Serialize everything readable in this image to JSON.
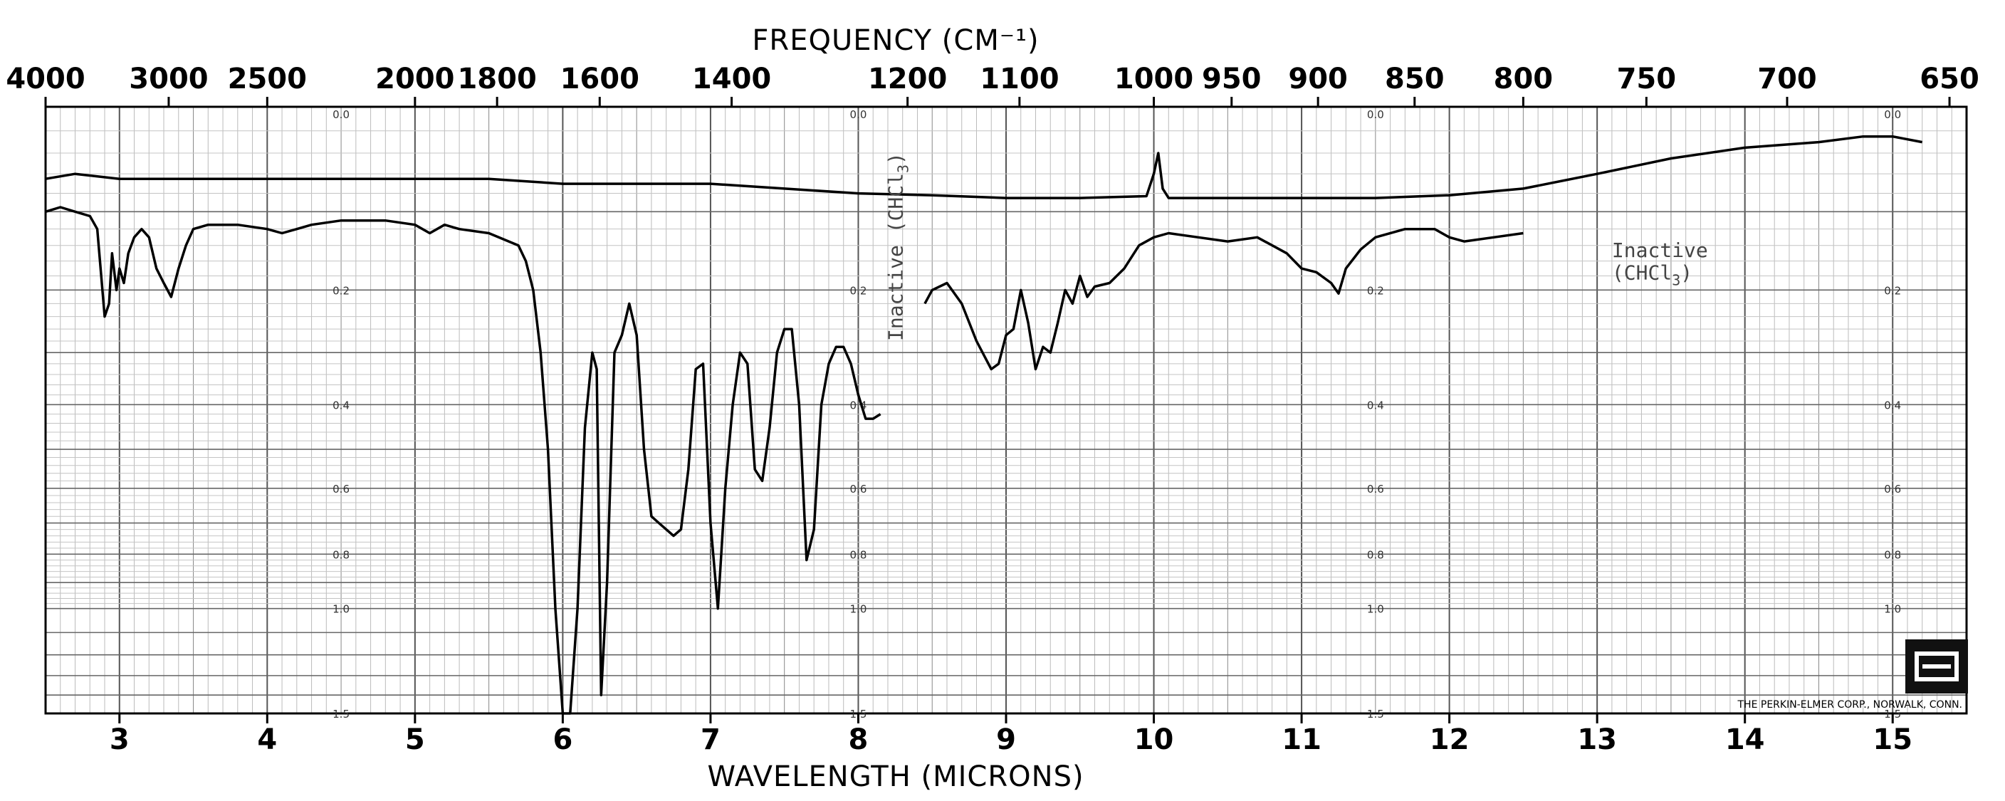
{
  "chart_data": {
    "type": "line",
    "title": "",
    "top_axis_title": "FREQUENCY (CM⁻¹)",
    "xlabel": "WAVELENGTH (MICRONS)",
    "ylabel": "",
    "xlim": [
      2.5,
      15.5
    ],
    "frequency_tick_labels": [
      "4000",
      "3000",
      "2500",
      "2000",
      "1800",
      "1600",
      "1400",
      "1200",
      "1100",
      "1000",
      "950",
      "900",
      "850",
      "800",
      "750",
      "700",
      "650"
    ],
    "frequency_tick_values": [
      4000,
      3000,
      2500,
      2000,
      1800,
      1600,
      1400,
      1200,
      1100,
      1000,
      950,
      900,
      850,
      800,
      750,
      700,
      650
    ],
    "wavelength_tick_labels": [
      "3",
      "4",
      "5",
      "6",
      "7",
      "8",
      "9",
      "10",
      "11",
      "12",
      "13",
      "14",
      "15"
    ],
    "wavelength_tick_values": [
      3,
      4,
      5,
      6,
      7,
      8,
      9,
      10,
      11,
      12,
      13,
      14,
      15
    ],
    "absorbance_tick_labels": [
      "0.0",
      "0.2",
      "0.4",
      "0.6",
      "0.8",
      "1.0",
      "1.5"
    ],
    "absorbance_tick_values": [
      0.0,
      0.2,
      0.4,
      0.6,
      0.8,
      1.0,
      1.5
    ],
    "absorbance_label_columns_micron": [
      4.5,
      8.0,
      11.5,
      15.0
    ],
    "grid": true,
    "annotations": [
      {
        "text": "Inactive (CHCl",
        "sub": "3",
        "close": ")",
        "x": 8.3,
        "y": 0.28,
        "rotation": -90
      },
      {
        "text": "Inactive",
        "x": 13.1,
        "y": 0.155
      },
      {
        "text": "(CHCl",
        "sub": "3",
        "close": ")",
        "x": 13.1,
        "y": 0.185
      }
    ],
    "credit": "THE PERKIN-ELMER CORP., NORWALK, CONN.",
    "series": [
      {
        "name": "",
        "x": [
          2.5,
          2.6,
          2.7,
          2.8,
          2.85,
          2.9,
          2.93,
          2.95,
          2.98,
          3.0,
          3.03,
          3.06,
          3.1,
          3.15,
          3.2,
          3.25,
          3.3,
          3.35,
          3.4,
          3.45,
          3.5,
          3.6,
          3.8,
          4.0,
          4.1,
          4.2,
          4.3,
          4.5,
          4.8,
          5.0,
          5.1,
          5.2,
          5.3,
          5.5,
          5.7,
          5.75,
          5.8,
          5.85,
          5.9,
          5.95,
          6.0,
          6.05,
          6.1,
          6.15,
          6.2,
          6.23,
          6.26,
          6.3,
          6.35,
          6.4,
          6.45,
          6.5,
          6.55,
          6.6,
          6.65,
          6.7,
          6.75,
          6.8,
          6.85,
          6.9,
          6.95,
          7.0,
          7.05,
          7.1,
          7.15,
          7.2,
          7.25,
          7.3,
          7.35,
          7.4,
          7.45,
          7.5,
          7.55,
          7.6,
          7.65,
          7.7,
          7.75,
          7.8,
          7.85,
          7.9,
          7.95,
          8.0,
          8.05,
          8.1,
          8.15
        ],
        "y": [
          0.1,
          0.095,
          0.1,
          0.105,
          0.12,
          0.24,
          0.22,
          0.15,
          0.2,
          0.17,
          0.19,
          0.15,
          0.13,
          0.12,
          0.13,
          0.17,
          0.19,
          0.21,
          0.17,
          0.14,
          0.12,
          0.115,
          0.115,
          0.12,
          0.125,
          0.12,
          0.115,
          0.11,
          0.11,
          0.115,
          0.125,
          0.115,
          0.12,
          0.125,
          0.14,
          0.16,
          0.2,
          0.3,
          0.5,
          1.0,
          1.5,
          1.5,
          1.0,
          0.45,
          0.3,
          0.33,
          1.4,
          0.9,
          0.3,
          0.27,
          0.22,
          0.27,
          0.5,
          0.68,
          0.7,
          0.72,
          0.74,
          0.72,
          0.55,
          0.33,
          0.32,
          0.7,
          1.0,
          0.6,
          0.4,
          0.3,
          0.32,
          0.55,
          0.58,
          0.45,
          0.3,
          0.26,
          0.26,
          0.4,
          0.82,
          0.72,
          0.4,
          0.32,
          0.29,
          0.29,
          0.32,
          0.38,
          0.43,
          0.43,
          0.42
        ]
      },
      {
        "name": "",
        "x": [
          8.45,
          8.5,
          8.6,
          8.7,
          8.8,
          8.9,
          8.95,
          9.0,
          9.05,
          9.1,
          9.15,
          9.2,
          9.25,
          9.3,
          9.35,
          9.4,
          9.45,
          9.5,
          9.55,
          9.6,
          9.7,
          9.8,
          9.9,
          10.0,
          10.1,
          10.3,
          10.5,
          10.7,
          10.9,
          11.0,
          11.1,
          11.2,
          11.25,
          11.3,
          11.4,
          11.5,
          11.7,
          11.9,
          12.0,
          12.1,
          12.3,
          12.5
        ],
        "y": [
          0.22,
          0.2,
          0.19,
          0.22,
          0.28,
          0.33,
          0.32,
          0.27,
          0.26,
          0.2,
          0.25,
          0.33,
          0.29,
          0.3,
          0.25,
          0.2,
          0.22,
          0.18,
          0.21,
          0.195,
          0.19,
          0.17,
          0.14,
          0.13,
          0.125,
          0.13,
          0.135,
          0.13,
          0.15,
          0.17,
          0.175,
          0.19,
          0.205,
          0.17,
          0.145,
          0.13,
          0.12,
          0.12,
          0.13,
          0.135,
          0.13,
          0.125
        ]
      },
      {
        "name": "",
        "x": [
          2.5,
          2.7,
          3.0,
          3.3,
          3.6,
          4.0,
          4.5,
          5.0,
          5.5,
          6.0,
          6.5,
          7.0,
          7.5,
          8.0,
          8.5,
          9.0,
          9.5,
          9.95,
          10.0,
          10.03,
          10.06,
          10.1,
          10.5,
          11.0,
          11.5,
          12.0,
          12.5,
          13.0,
          13.5,
          14.0,
          14.5,
          14.8,
          15.0,
          15.2
        ],
        "y": [
          0.065,
          0.06,
          0.065,
          0.065,
          0.065,
          0.065,
          0.065,
          0.065,
          0.065,
          0.07,
          0.07,
          0.07,
          0.075,
          0.08,
          0.082,
          0.085,
          0.085,
          0.083,
          0.06,
          0.04,
          0.075,
          0.085,
          0.085,
          0.085,
          0.085,
          0.082,
          0.075,
          0.06,
          0.045,
          0.035,
          0.03,
          0.025,
          0.025,
          0.03
        ]
      }
    ]
  }
}
